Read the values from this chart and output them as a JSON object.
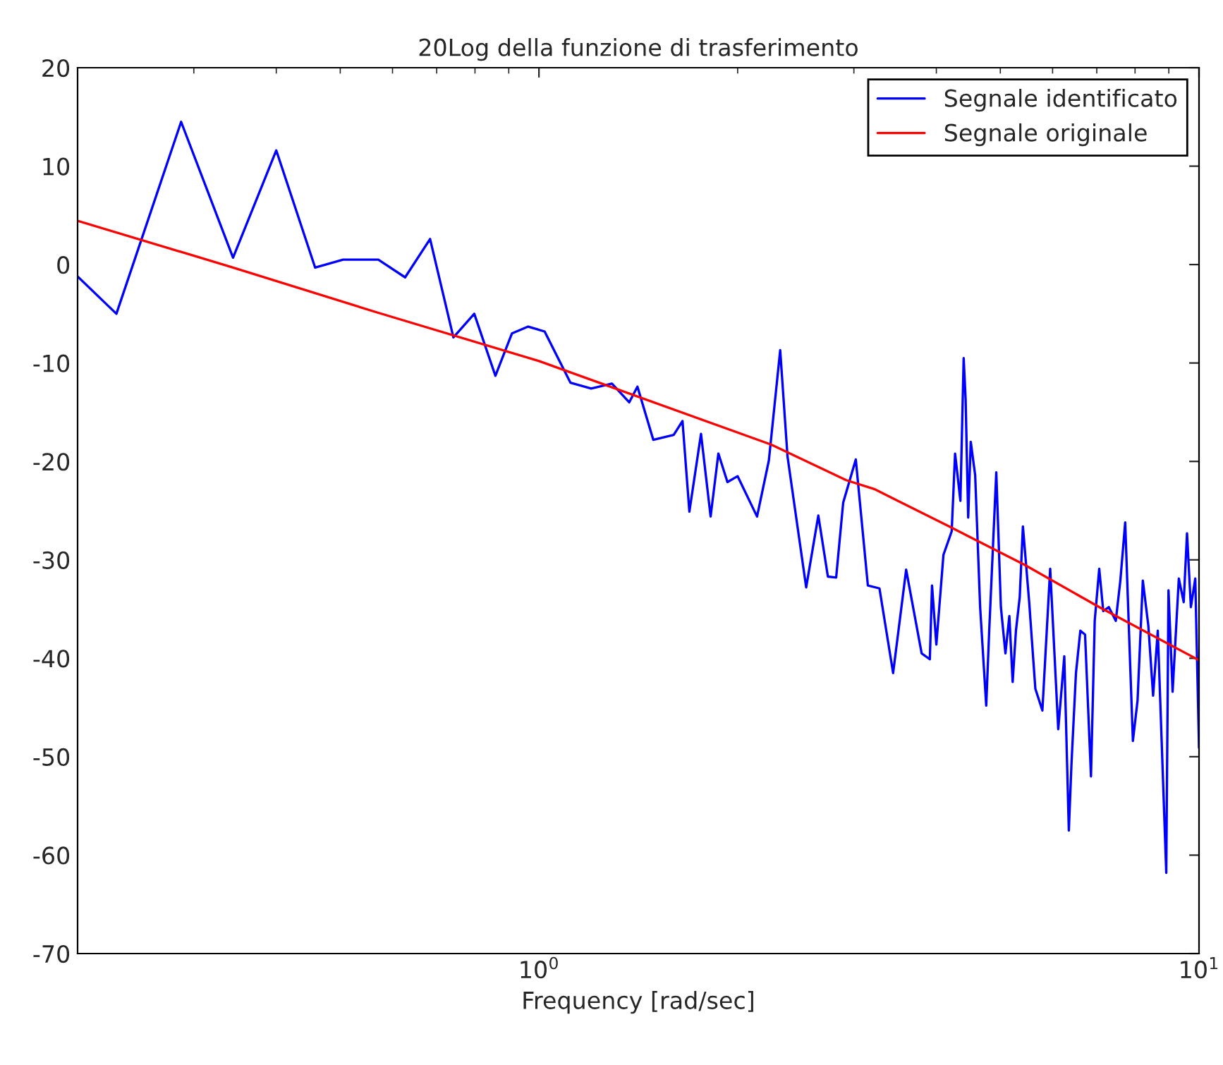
{
  "chart_data": {
    "type": "line",
    "title": "20Log della funzione di trasferimento",
    "xlabel": "Frequency [rad/sec]",
    "log": "x",
    "xlim": [
      0.2,
      10
    ],
    "xticks": [
      {
        "value": 1,
        "label": "10$^{0}$"
      },
      {
        "value": 10,
        "label": "10$^{1}$"
      }
    ],
    "ylim": [
      -70,
      20
    ],
    "yticks": [
      -70,
      -60,
      -50,
      -40,
      -30,
      -20,
      -10,
      0,
      10,
      20
    ],
    "grid": false,
    "legend": "top right",
    "line_style": "solid",
    "marker": "none",
    "series": [
      {
        "name": "Segnale identificato",
        "color": "#0000ff",
        "x": [
          0.2,
          0.229,
          0.287,
          0.344,
          0.4,
          0.458,
          0.505,
          0.571,
          0.627,
          0.684,
          0.742,
          0.798,
          0.859,
          0.91,
          0.963,
          1.02,
          1.116,
          1.2,
          1.29,
          1.37,
          1.41,
          1.49,
          1.6,
          1.65,
          1.69,
          1.76,
          1.82,
          1.87,
          1.93,
          2.0,
          2.14,
          2.23,
          2.32,
          2.38,
          2.54,
          2.65,
          2.74,
          2.82,
          2.89,
          3.02,
          3.15,
          3.28,
          3.44,
          3.6,
          3.8,
          3.91,
          3.94,
          4.0,
          4.1,
          4.22,
          4.27,
          4.35,
          4.4,
          4.43,
          4.47,
          4.51,
          4.58,
          4.66,
          4.76,
          4.81,
          4.93,
          5.01,
          5.09,
          5.16,
          5.22,
          5.28,
          5.35,
          5.41,
          5.53,
          5.65,
          5.79,
          5.95,
          6.12,
          6.25,
          6.35,
          6.41,
          6.51,
          6.61,
          6.72,
          6.86,
          6.95,
          7.06,
          7.16,
          7.3,
          7.48,
          7.6,
          7.73,
          7.85,
          7.94,
          8.07,
          8.22,
          8.38,
          8.52,
          8.66,
          8.76,
          8.92,
          8.99,
          9.12,
          9.32,
          9.48,
          9.59,
          9.72,
          9.87,
          10
        ],
        "values": [
          -1.2,
          -5.0,
          14.5,
          0.7,
          11.6,
          -0.3,
          0.5,
          0.5,
          -1.3,
          2.6,
          -7.4,
          -5.0,
          -11.3,
          -7.0,
          -6.3,
          -6.8,
          -12.0,
          -12.6,
          -12.1,
          -14.0,
          -12.4,
          -17.8,
          -17.3,
          -15.9,
          -25.1,
          -17.2,
          -25.6,
          -19.2,
          -22.1,
          -21.5,
          -25.6,
          -19.9,
          -8.7,
          -19.5,
          -32.8,
          -25.5,
          -31.7,
          -31.8,
          -24.2,
          -19.8,
          -32.6,
          -32.9,
          -41.5,
          -31.0,
          -39.5,
          -40.1,
          -32.6,
          -38.6,
          -29.5,
          -27.1,
          -19.2,
          -24.0,
          -9.5,
          -13.7,
          -25.7,
          -18.0,
          -21.4,
          -34.8,
          -44.8,
          -37.2,
          -21.1,
          -34.8,
          -39.5,
          -35.7,
          -42.4,
          -37.2,
          -33.8,
          -26.6,
          -34.3,
          -43.1,
          -45.3,
          -30.9,
          -47.2,
          -39.8,
          -57.5,
          -50.6,
          -41.5,
          -37.2,
          -37.6,
          -52.0,
          -36.2,
          -30.9,
          -35.2,
          -34.8,
          -36.2,
          -32.1,
          -26.2,
          -39.1,
          -48.4,
          -44.3,
          -32.1,
          -36.7,
          -43.8,
          -37.2,
          -46.7,
          -61.8,
          -33.1,
          -43.4,
          -31.9,
          -34.3,
          -27.3,
          -34.8,
          -31.9,
          -49.1
        ]
      },
      {
        "name": "Segnale originale",
        "color": "#ff0000",
        "x": [
          0.2,
          0.344,
          0.571,
          1.0,
          2.25,
          2.92,
          3.22,
          4.18,
          5.44,
          7.06,
          10
        ],
        "values": [
          4.45,
          -0.3,
          -4.9,
          -9.8,
          -18.3,
          -21.9,
          -22.8,
          -26.6,
          -30.5,
          -34.8,
          -40.2
        ]
      }
    ]
  }
}
